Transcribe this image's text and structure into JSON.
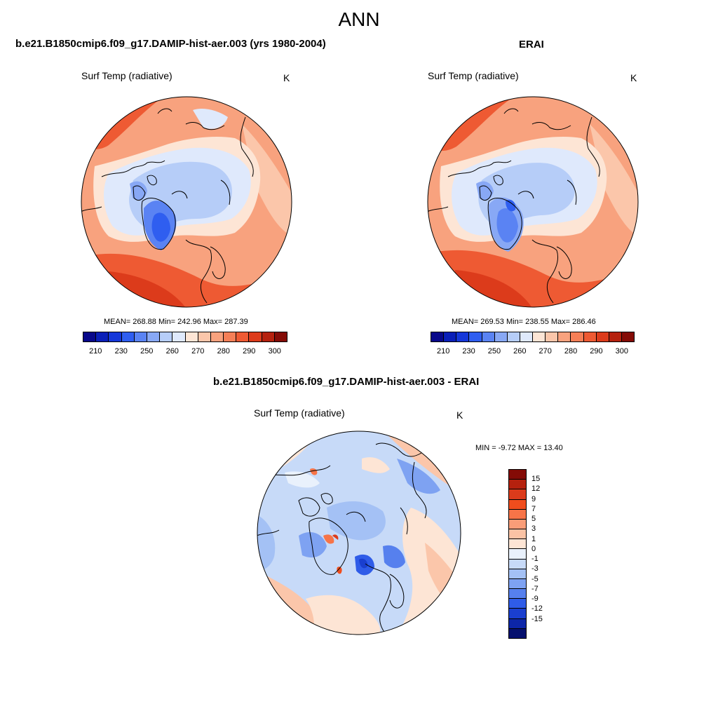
{
  "season": "ANN",
  "panels": {
    "model": {
      "title": "b.e21.B1850cmip6.f09_g17.DAMIP-hist-aer.003 (yrs 1980-2004)",
      "variable": "Surf Temp (radiative)",
      "units": "K",
      "stats": "MEAN= 268.88  Min= 242.96  Max= 287.39"
    },
    "obs": {
      "title": "ERAI",
      "variable": "Surf Temp (radiative)",
      "units": "K",
      "stats": "MEAN= 269.53  Min= 238.55  Max= 286.46"
    },
    "diff": {
      "title": "b.e21.B1850cmip6.f09_g17.DAMIP-hist-aer.003 - ERAI",
      "variable": "Surf Temp (radiative)",
      "units": "K",
      "stats": "MIN =  -9.72 MAX =  13.40"
    }
  },
  "colorbar_abs": {
    "colors": [
      "#08088a",
      "#0a1fb8",
      "#1537d9",
      "#2f5ef0",
      "#5a83f3",
      "#88a8f5",
      "#b6cdf8",
      "#dfe9fc",
      "#fde5d5",
      "#fbc6aa",
      "#f8a27e",
      "#f57f57",
      "#ee5a33",
      "#dc3b1b",
      "#b5210e",
      "#840b06"
    ],
    "labels": [
      "210",
      "230",
      "250",
      "260",
      "270",
      "280",
      "290",
      "300"
    ]
  },
  "colorbar_diff": {
    "colors": [
      "#840b06",
      "#b5210e",
      "#dc3b1b",
      "#f04d1d",
      "#f77448",
      "#f99d78",
      "#fbc3a5",
      "#fde5d5",
      "#e9f1fc",
      "#c7daf8",
      "#a4c1f5",
      "#7ea2f2",
      "#5680ee",
      "#2f5ce8",
      "#1a3fcf",
      "#0d26a8",
      "#05106e"
    ],
    "labels": [
      "15",
      "12",
      "9",
      "7",
      "5",
      "3",
      "1",
      "0",
      "-1",
      "-3",
      "-5",
      "-7",
      "-9",
      "-12",
      "-15"
    ]
  }
}
